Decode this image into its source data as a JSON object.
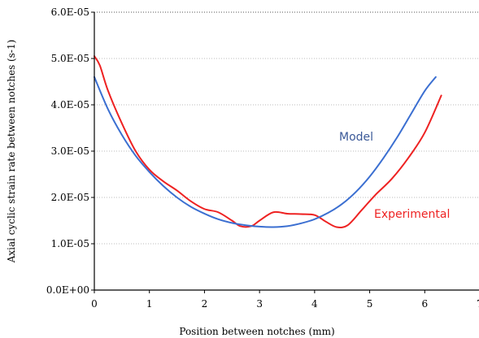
{
  "chart_data": {
    "type": "line",
    "title": "",
    "xlabel": "Position between notches (mm)",
    "ylabel": "Axial cyclic strain rate between notches (s-1)",
    "xlim": [
      0,
      7
    ],
    "ylim": [
      0,
      6e-05
    ],
    "x_ticks": [
      "0",
      "1",
      "2",
      "3",
      "4",
      "5",
      "6",
      "7"
    ],
    "y_ticks": [
      "0.0E+00",
      "1.0E-05",
      "2.0E-05",
      "3.0E-05",
      "4.0E-05",
      "5.0E-05",
      "6.0E-05"
    ],
    "grid": "horizontal",
    "colors": {
      "model": "#3b6fd1",
      "experimental": "#ee2222"
    },
    "series": [
      {
        "name": "Model",
        "color": "#3b6fd1",
        "points": [
          [
            0,
            4.6e-05
          ],
          [
            0.25,
            3.9e-05
          ],
          [
            0.5,
            3.35e-05
          ],
          [
            0.75,
            2.9e-05
          ],
          [
            1.0,
            2.55e-05
          ],
          [
            1.25,
            2.25e-05
          ],
          [
            1.5,
            2e-05
          ],
          [
            1.75,
            1.8e-05
          ],
          [
            2.0,
            1.65e-05
          ],
          [
            2.25,
            1.53e-05
          ],
          [
            2.5,
            1.45e-05
          ],
          [
            2.75,
            1.4e-05
          ],
          [
            3.0,
            1.37e-05
          ],
          [
            3.25,
            1.36e-05
          ],
          [
            3.5,
            1.38e-05
          ],
          [
            3.75,
            1.44e-05
          ],
          [
            4.0,
            1.53e-05
          ],
          [
            4.25,
            1.67e-05
          ],
          [
            4.5,
            1.86e-05
          ],
          [
            4.75,
            2.12e-05
          ],
          [
            5.0,
            2.45e-05
          ],
          [
            5.25,
            2.85e-05
          ],
          [
            5.5,
            3.3e-05
          ],
          [
            5.75,
            3.8e-05
          ],
          [
            6.0,
            4.3e-05
          ],
          [
            6.2,
            4.6e-05
          ]
        ]
      },
      {
        "name": "Experimental",
        "color": "#ee2222",
        "points": [
          [
            0,
            5.05e-05
          ],
          [
            0.1,
            4.85e-05
          ],
          [
            0.25,
            4.3e-05
          ],
          [
            0.5,
            3.6e-05
          ],
          [
            0.75,
            3e-05
          ],
          [
            1.0,
            2.6e-05
          ],
          [
            1.25,
            2.35e-05
          ],
          [
            1.5,
            2.15e-05
          ],
          [
            1.75,
            1.92e-05
          ],
          [
            2.0,
            1.75e-05
          ],
          [
            2.25,
            1.68e-05
          ],
          [
            2.5,
            1.5e-05
          ],
          [
            2.65,
            1.38e-05
          ],
          [
            2.85,
            1.38e-05
          ],
          [
            3.0,
            1.5e-05
          ],
          [
            3.25,
            1.68e-05
          ],
          [
            3.5,
            1.65e-05
          ],
          [
            3.75,
            1.64e-05
          ],
          [
            4.0,
            1.62e-05
          ],
          [
            4.2,
            1.48e-05
          ],
          [
            4.4,
            1.36e-05
          ],
          [
            4.6,
            1.4e-05
          ],
          [
            4.85,
            1.72e-05
          ],
          [
            5.1,
            2.05e-05
          ],
          [
            5.4,
            2.4e-05
          ],
          [
            5.7,
            2.85e-05
          ],
          [
            6.0,
            3.4e-05
          ],
          [
            6.3,
            4.2e-05
          ]
        ]
      }
    ],
    "annotations": {
      "model_label": "Model",
      "experimental_label": "Experimental"
    }
  }
}
